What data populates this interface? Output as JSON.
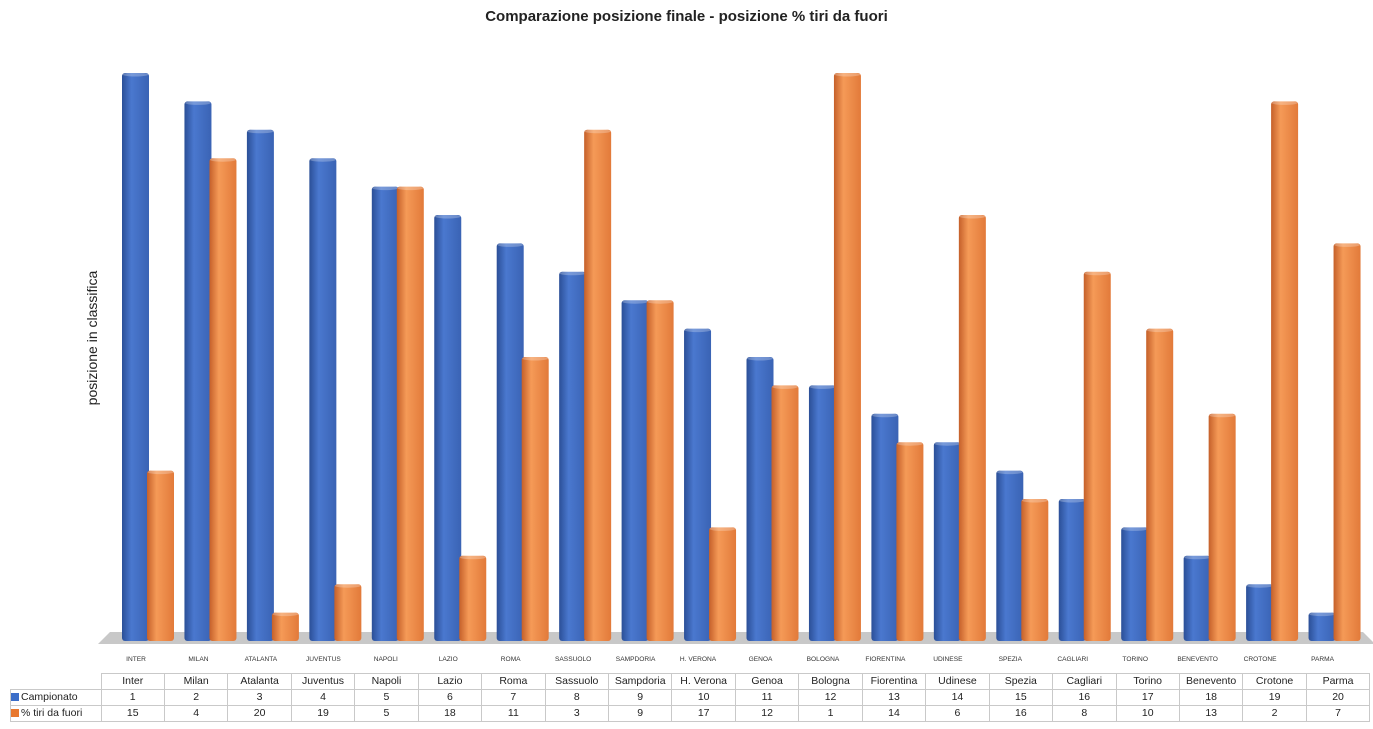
{
  "chart_data": {
    "type": "bar",
    "title": "Comparazione posizione finale - posizione % tiri da fuori",
    "ylabel": "posizione in classifica",
    "axis_labels": [
      "INTER",
      "MILAN",
      "ATALANTA",
      "JUVENTUS",
      "NAPOLI",
      "LAZIO",
      "ROMA",
      "SASSUOLO",
      "SAMPDORIA",
      "H. VERONA",
      "GENOA",
      "BOLOGNA",
      "FIORENTINA",
      "UDINESE",
      "SPEZIA",
      "CAGLIARI",
      "TORINO",
      "BENEVENTO",
      "CROTONE",
      "PARMA"
    ],
    "categories": [
      "Inter",
      "Milan",
      "Atalanta",
      "Juventus",
      "Napoli",
      "Lazio",
      "Roma",
      "Sassuolo",
      "Sampdoria",
      "H. Verona",
      "Genoa",
      "Bologna",
      "Fiorentina",
      "Udinese",
      "Spezia",
      "Cagliari",
      "Torino",
      "Benevento",
      "Crotone",
      "Parma"
    ],
    "series": [
      {
        "name": "Campionato",
        "color": "#4472c4",
        "values": [
          1,
          2,
          3,
          4,
          5,
          6,
          7,
          8,
          9,
          10,
          11,
          12,
          13,
          14,
          15,
          16,
          17,
          18,
          19,
          20
        ]
      },
      {
        "name": "% tiri da fuori",
        "color": "#ed7d31",
        "values": [
          15,
          4,
          20,
          19,
          5,
          18,
          11,
          3,
          9,
          17,
          12,
          1,
          14,
          6,
          16,
          8,
          10,
          13,
          2,
          7
        ]
      }
    ],
    "bar_height_rule": "21 - position",
    "legend": "data table below chart",
    "grid": false
  }
}
